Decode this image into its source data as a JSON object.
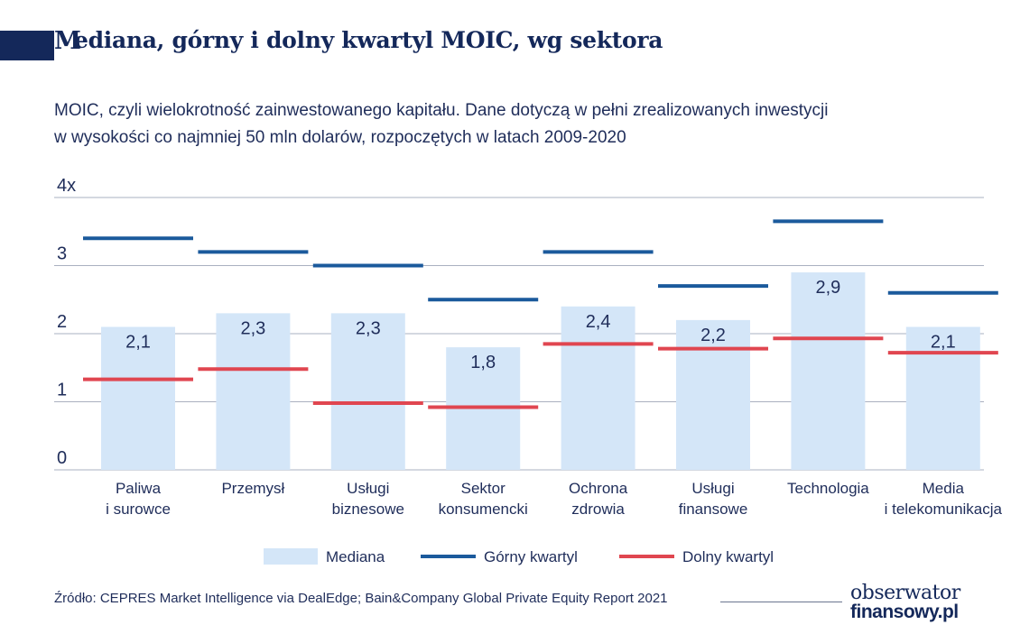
{
  "header": {
    "title_initial": "M",
    "title_rest": "ediana, górny i dolny kwartyl MOIC, wg sektora",
    "subtitle_line1": "MOIC, czyli wielokrotność zainwestowanego kapitału. Dane dotyczą w pełni zrealizowanych inwestycji",
    "subtitle_line2": "w wysokości co najmniej 50 mln dolarów, rozpoczętych w latach 2009-2020"
  },
  "chart_data": {
    "type": "bar",
    "categories": [
      [
        "Paliwa",
        "i surowce"
      ],
      [
        "Przemysł"
      ],
      [
        "Usługi",
        "biznesowe"
      ],
      [
        "Sektor",
        "konsumencki"
      ],
      [
        "Ochrona",
        "zdrowia"
      ],
      [
        "Usługi",
        "finansowe"
      ],
      [
        "Technologia"
      ],
      [
        "Media",
        "i telekomunikacja"
      ]
    ],
    "series": [
      {
        "name": "Mediana",
        "style": "bar",
        "color": "#d4e6f8",
        "values": [
          2.1,
          2.3,
          2.3,
          1.8,
          2.4,
          2.2,
          2.9,
          2.1
        ],
        "labels": [
          "2,1",
          "2,3",
          "2,3",
          "1,8",
          "2,4",
          "2,2",
          "2,9",
          "2,1"
        ]
      },
      {
        "name": "Górny kwartyl",
        "style": "line-marker",
        "color": "#1b5a9c",
        "values": [
          3.4,
          3.2,
          3.0,
          2.5,
          3.2,
          2.7,
          3.65,
          2.6
        ]
      },
      {
        "name": "Dolny kwartyl",
        "style": "line-marker",
        "color": "#e04650",
        "values": [
          1.33,
          1.48,
          0.98,
          0.92,
          1.85,
          1.78,
          1.93,
          1.72
        ]
      }
    ],
    "y_ticks": [
      {
        "value": 0,
        "label": "0"
      },
      {
        "value": 1,
        "label": "1"
      },
      {
        "value": 2,
        "label": "2"
      },
      {
        "value": 3,
        "label": "3"
      },
      {
        "value": 4,
        "label": "4x"
      }
    ],
    "ylim": [
      0,
      4
    ],
    "grid": true,
    "legend_position": "bottom",
    "colors": {
      "grid": "#aab0c0",
      "text": "#1f2d5a"
    }
  },
  "footer": {
    "source": "Źródło: CEPRES Market Intelligence via DealEdge; Bain&Company Global Private Equity Report 2021",
    "logo_line1": "obserwator",
    "logo_line2": "finansowy.pl"
  }
}
